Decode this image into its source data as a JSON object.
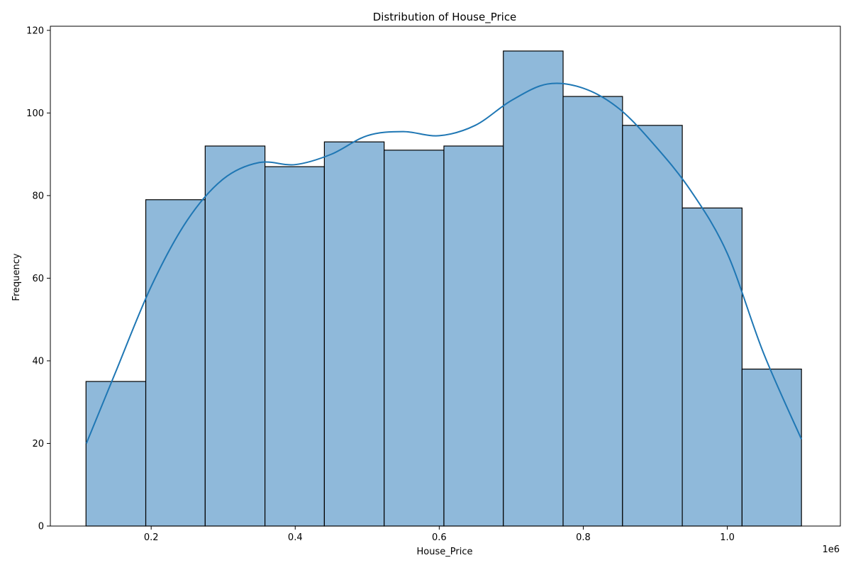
{
  "chart_data": {
    "type": "bar",
    "title": "Distribution of House_Price",
    "xlabel": "House_Price",
    "ylabel": "Frequency",
    "x_offset_text": "1e6",
    "x_unit_scale": 1000000,
    "xlim": [
      0.06,
      1.157
    ],
    "ylim": [
      0,
      121
    ],
    "x_ticks": [
      0.2,
      0.4,
      0.6,
      0.8,
      1.0
    ],
    "x_tick_labels": [
      "0.2",
      "0.4",
      "0.6",
      "0.8",
      "1.0"
    ],
    "y_ticks": [
      0,
      20,
      40,
      60,
      80,
      100,
      120
    ],
    "y_tick_labels": [
      "0",
      "20",
      "40",
      "60",
      "80",
      "100",
      "120"
    ],
    "bin_edges": [
      0.1095,
      0.1925,
      0.275,
      0.358,
      0.4405,
      0.5235,
      0.6065,
      0.689,
      0.772,
      0.8545,
      0.9375,
      1.0205,
      1.103
    ],
    "values": [
      35,
      79,
      92,
      87,
      93,
      91,
      92,
      115,
      104,
      97,
      77,
      38
    ],
    "bar_color": "#8fb9da",
    "bar_edge_color": "#000000",
    "kde": {
      "color": "#1f77b4",
      "x": [
        0.11,
        0.15,
        0.2,
        0.25,
        0.3,
        0.35,
        0.4,
        0.45,
        0.5,
        0.55,
        0.6,
        0.65,
        0.7,
        0.75,
        0.8,
        0.85,
        0.9,
        0.95,
        1.0,
        1.05,
        1.103
      ],
      "y": [
        20,
        37,
        58,
        74,
        84,
        88,
        87.5,
        90,
        94.5,
        95.5,
        94.5,
        97,
        103,
        107,
        106,
        101,
        92,
        81,
        66,
        42,
        21
      ]
    },
    "grid": false,
    "legend": false
  }
}
